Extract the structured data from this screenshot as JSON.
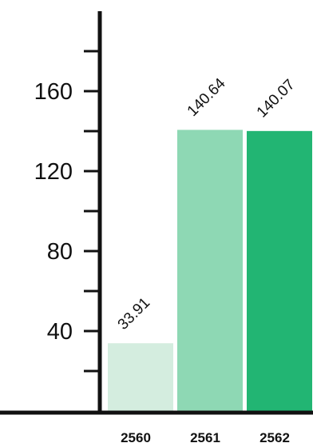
{
  "chart_data": {
    "type": "bar",
    "title": "",
    "xlabel": "",
    "ylabel": "",
    "categories": [
      "2560",
      "2561",
      "2562"
    ],
    "values": [
      33.91,
      140.64,
      140.07
    ],
    "value_labels": [
      "33.91",
      "140.64",
      "140.07"
    ],
    "ylim": [
      0,
      200
    ],
    "y_ticks": [
      40,
      80,
      120,
      160
    ],
    "y_tick_labels": [
      "40",
      "80",
      "120",
      "160"
    ],
    "grid": false,
    "legend": "none",
    "bar_colors": [
      "#d4eddf",
      "#8ed8b4",
      "#22b573"
    ],
    "axis_color": "#111111"
  }
}
